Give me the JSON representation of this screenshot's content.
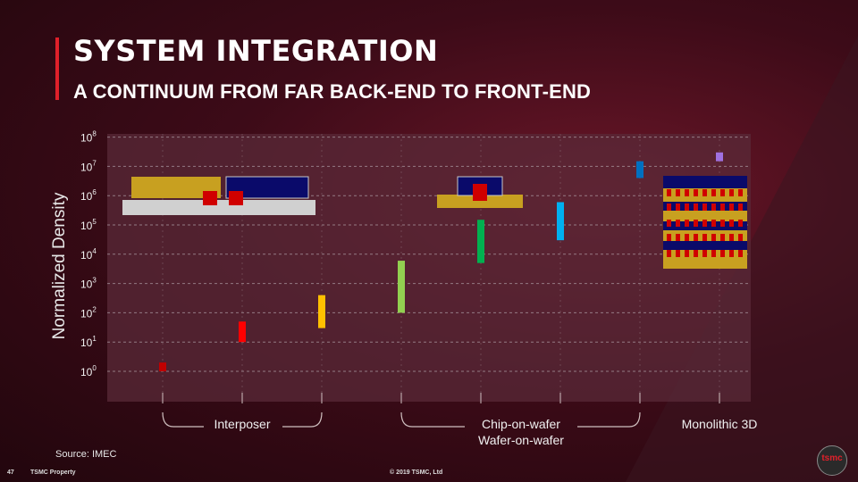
{
  "header": {
    "title": "SYSTEM INTEGRATION",
    "subtitle": "A CONTINUUM FROM FAR BACK-END TO FRONT-END"
  },
  "footer": {
    "source": "Source: IMEC",
    "page_number": "47",
    "property": "TSMC Property",
    "copyright": "© 2019 TSMC, Ltd",
    "logo_text": "tsmc"
  },
  "chart_data": {
    "type": "bar",
    "ylabel": "Normalized Density",
    "yscale": "log",
    "ylim_exp": [
      -1,
      8
    ],
    "y_ticks": [
      {
        "base": "10",
        "exp": "0"
      },
      {
        "base": "10",
        "exp": "1"
      },
      {
        "base": "10",
        "exp": "2"
      },
      {
        "base": "10",
        "exp": "3"
      },
      {
        "base": "10",
        "exp": "4"
      },
      {
        "base": "10",
        "exp": "5"
      },
      {
        "base": "10",
        "exp": "6"
      },
      {
        "base": "10",
        "exp": "7"
      },
      {
        "base": "10",
        "exp": "8"
      }
    ],
    "grid": true,
    "bars": [
      {
        "low": 1,
        "high": 2,
        "color": "#c00000"
      },
      {
        "low": 10,
        "high": 50,
        "color": "#ff0000"
      },
      {
        "low": 30,
        "high": 400,
        "color": "#ffc000"
      },
      {
        "low": 100,
        "high": 6000,
        "color": "#92d050"
      },
      {
        "low": 5000,
        "high": 150000,
        "color": "#00b050"
      },
      {
        "low": 30000,
        "high": 600000,
        "color": "#00b0f0"
      },
      {
        "low": 4000000,
        "high": 15000000,
        "color": "#0070c0"
      },
      {
        "low": 15000000,
        "high": 30000000,
        "color": "#a070e0"
      }
    ],
    "groups": [
      {
        "label": "Interposer"
      },
      {
        "label": "Chip-on-wafer",
        "label2": "Wafer-on-wafer"
      },
      {
        "label": "Monolithic 3D"
      }
    ],
    "colors": {
      "gold": "#c8a020",
      "navy": "#0a0a6a",
      "silver": "#d0d0d0",
      "red": "#d00000",
      "grid": "#b0a0a8",
      "plot_bg": "#5a2a38"
    }
  }
}
